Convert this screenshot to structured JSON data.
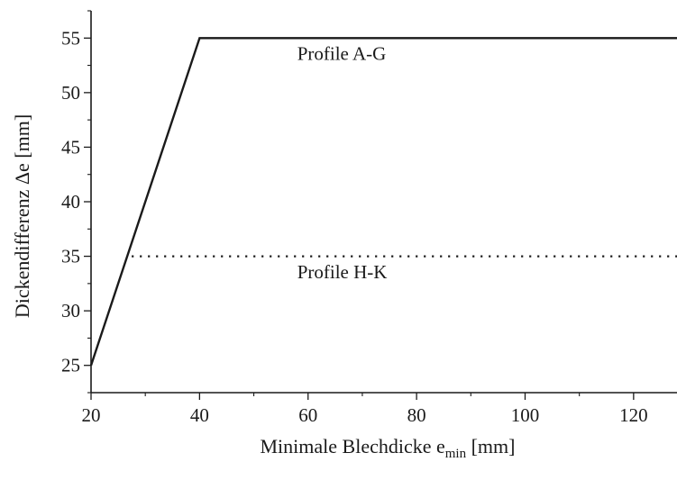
{
  "chart_data": {
    "type": "line",
    "title": "",
    "xlabel": {
      "main": "Minimale Blechdicke e",
      "sub": "min",
      "unit": " [mm]"
    },
    "ylabel": "Dickendifferenz Δe [mm]",
    "xlim": [
      20,
      128
    ],
    "ylim": [
      22.5,
      57.5
    ],
    "x_ticks": [
      20,
      40,
      60,
      80,
      100,
      120
    ],
    "y_ticks": [
      25,
      30,
      35,
      40,
      45,
      50,
      55
    ],
    "grid": false,
    "legend": "none",
    "series": [
      {
        "style": "solid",
        "color": "#1a1a1a",
        "points": [
          [
            20,
            25
          ],
          [
            40,
            55
          ],
          [
            128,
            55
          ]
        ]
      },
      {
        "style": "dotted",
        "color": "#1a1a1a",
        "points": [
          [
            27.5,
            35
          ],
          [
            128,
            35
          ]
        ]
      }
    ],
    "annotations": [
      {
        "text": "Profile A-G",
        "x": 58,
        "y": 53
      },
      {
        "text": "Profile H-K",
        "x": 58,
        "y": 33
      }
    ]
  }
}
